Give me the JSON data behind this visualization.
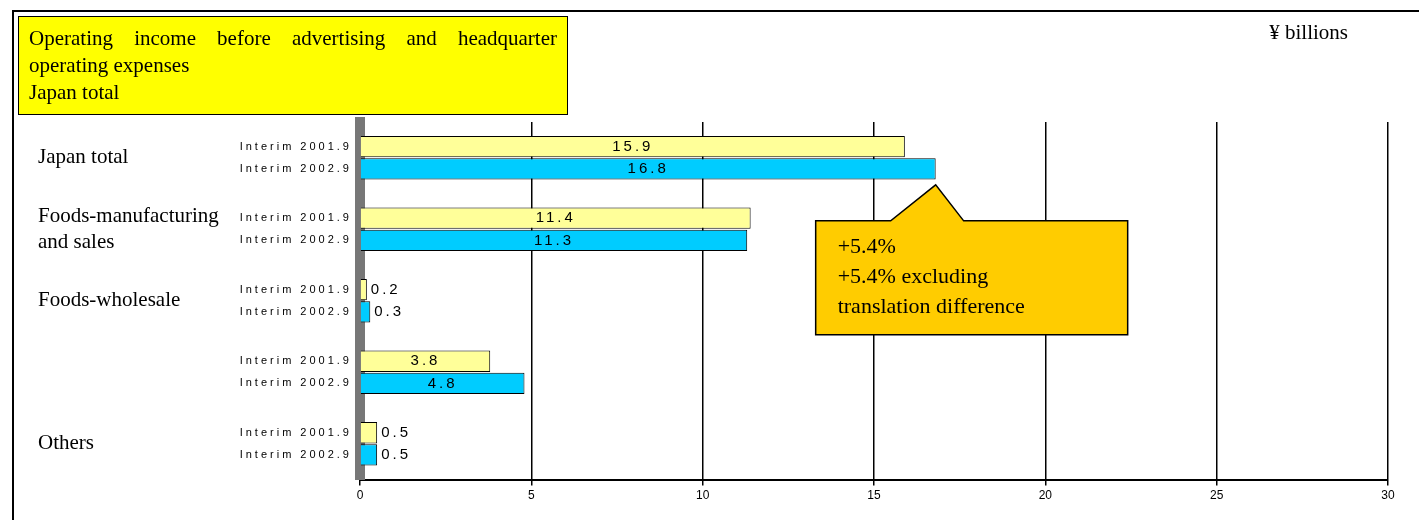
{
  "chart_data": {
    "type": "bar",
    "orientation": "horizontal",
    "title": "Operating income before advertising and headquarter operating expenses\nJapan total",
    "categories": [
      "Japan total",
      "Foods-manufacturing and sales",
      "Foods-wholesale",
      null,
      "Others"
    ],
    "series": [
      {
        "name": "Interim 2001.9",
        "color": "#ffff99",
        "values": [
          15.9,
          11.4,
          0.2,
          3.8,
          0.5
        ]
      },
      {
        "name": "Interim 2002.9",
        "color": "#00ccff",
        "values": [
          16.8,
          11.3,
          0.3,
          4.8,
          0.5
        ]
      }
    ],
    "xlim": [
      0,
      30
    ],
    "xticks": [
      0,
      5,
      10,
      15,
      20,
      25,
      30
    ],
    "grid": "x",
    "legend": false,
    "data_labels": true,
    "annotations": [
      "¥ billions",
      "+5.4%\n+5.4% excluding\ntranslation difference"
    ]
  }
}
